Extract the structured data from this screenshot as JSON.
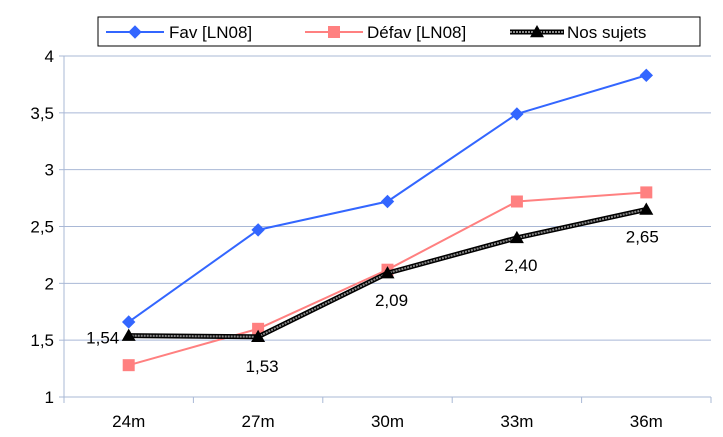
{
  "chart_data": {
    "type": "line",
    "categories": [
      "24m",
      "27m",
      "30m",
      "33m",
      "36m"
    ],
    "ylim": [
      1,
      4
    ],
    "yticks": [
      1,
      1.5,
      2,
      2.5,
      3,
      3.5,
      4
    ],
    "ytick_labels": [
      "1",
      "1,5",
      "2",
      "2,5",
      "3",
      "3,5",
      "4"
    ],
    "grid": "horizontal",
    "legend_position": "top-right",
    "series": [
      {
        "name": "Fav [LN08]",
        "values": [
          1.66,
          2.47,
          2.72,
          3.49,
          3.83
        ],
        "color": "#3366ff",
        "marker": "diamond"
      },
      {
        "name": "Défav [LN08]",
        "values": [
          1.28,
          1.6,
          2.12,
          2.72,
          2.8
        ],
        "color": "#ff8080",
        "marker": "square"
      },
      {
        "name": "Nos sujets",
        "values": [
          1.54,
          1.53,
          2.09,
          2.4,
          2.65
        ],
        "color": "#000000",
        "marker": "triangle",
        "labels": [
          "1,54",
          "1,53",
          "2,09",
          "2,40",
          "2,65"
        ]
      }
    ]
  }
}
